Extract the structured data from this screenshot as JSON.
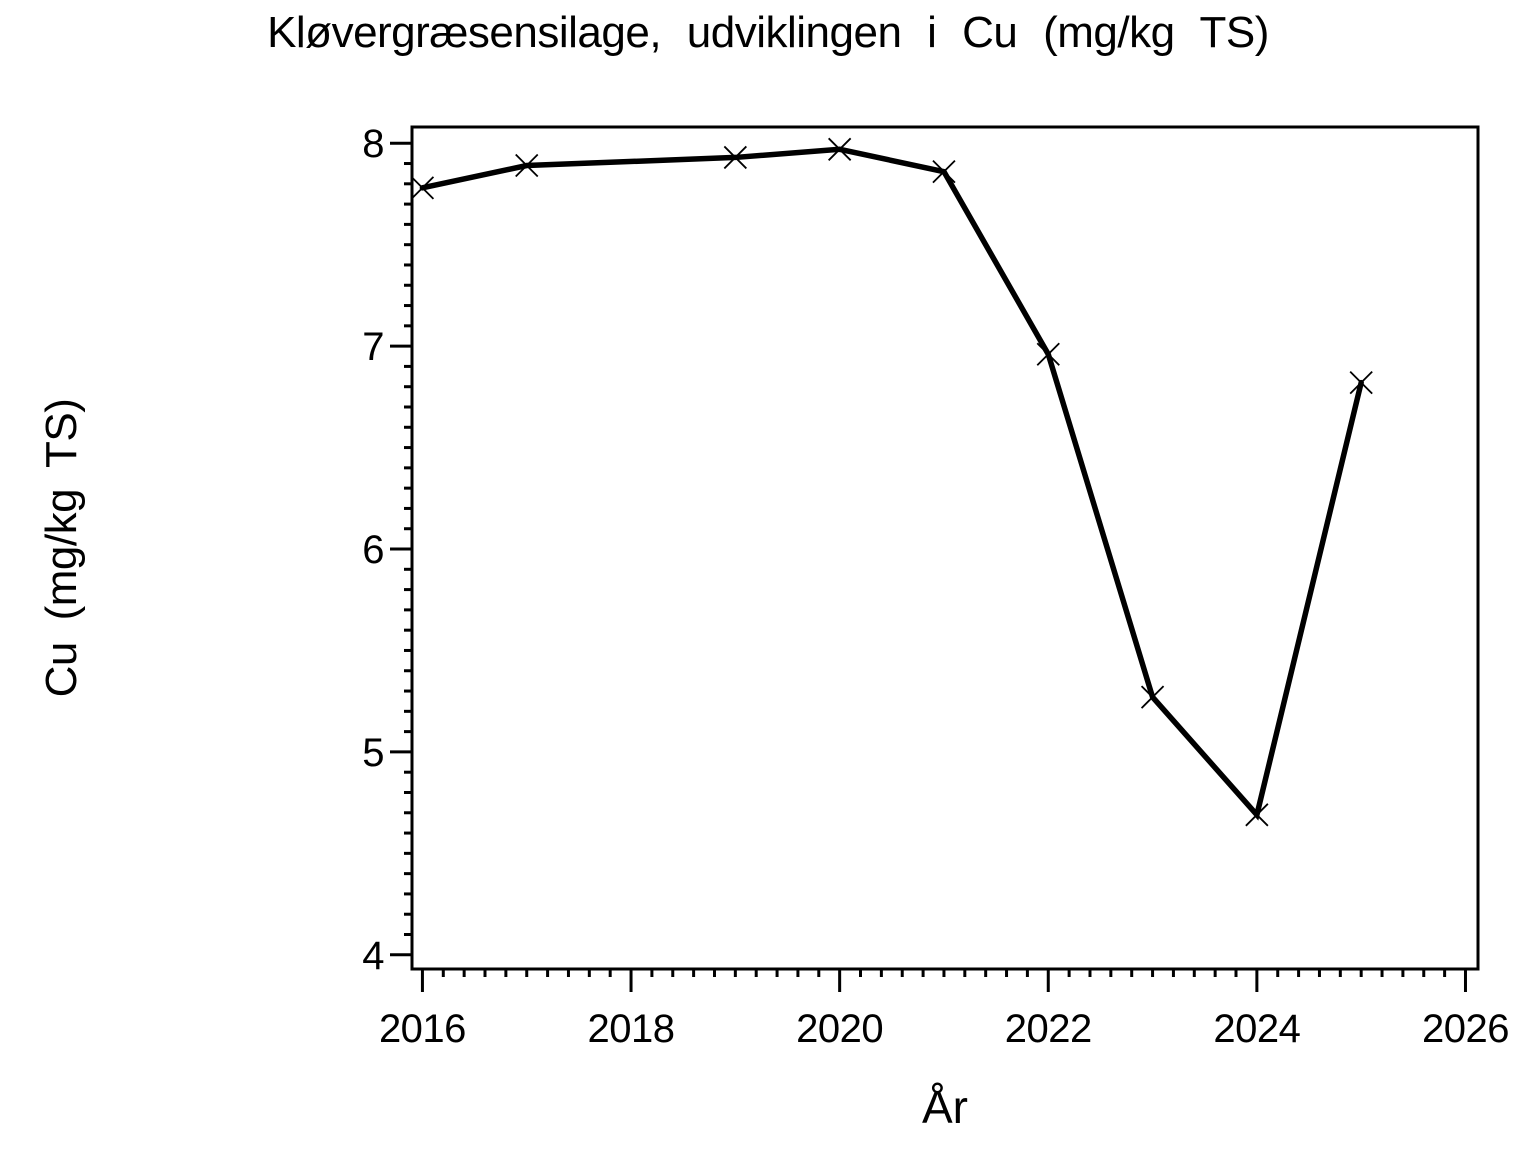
{
  "page": {
    "background": "#ffffff",
    "foreground": "#000000"
  },
  "chart_data": {
    "type": "line",
    "title": "Kløvergræsensilage, udviklingen i Cu (mg/kg TS)",
    "xlabel": "År",
    "ylabel": "Cu (mg/kg TS)",
    "x": [
      2016,
      2017,
      2019,
      2020,
      2021,
      2022,
      2023,
      2024,
      2025
    ],
    "y": [
      7.78,
      7.89,
      7.93,
      7.97,
      7.86,
      6.96,
      5.27,
      4.69,
      6.82
    ],
    "series_name": "Cu (mg/kg TS)",
    "marker": "x",
    "line_color": "#000000",
    "marker_color": "#000000",
    "xlim": [
      2015.9,
      2026.12
    ],
    "ylim": [
      3.93,
      8.08
    ],
    "x_major_ticks": [
      2016,
      2018,
      2020,
      2022,
      2024,
      2026
    ],
    "x_tick_labels": [
      "2016",
      "2018",
      "2020",
      "2022",
      "2024",
      "2026"
    ],
    "x_minor_step": 0.2,
    "y_major_ticks": [
      4,
      5,
      6,
      7,
      8
    ],
    "y_tick_labels": [
      "4",
      "5",
      "6",
      "7",
      "8"
    ],
    "y_minor_step": 0.1,
    "grid": "off",
    "legend": "none"
  }
}
